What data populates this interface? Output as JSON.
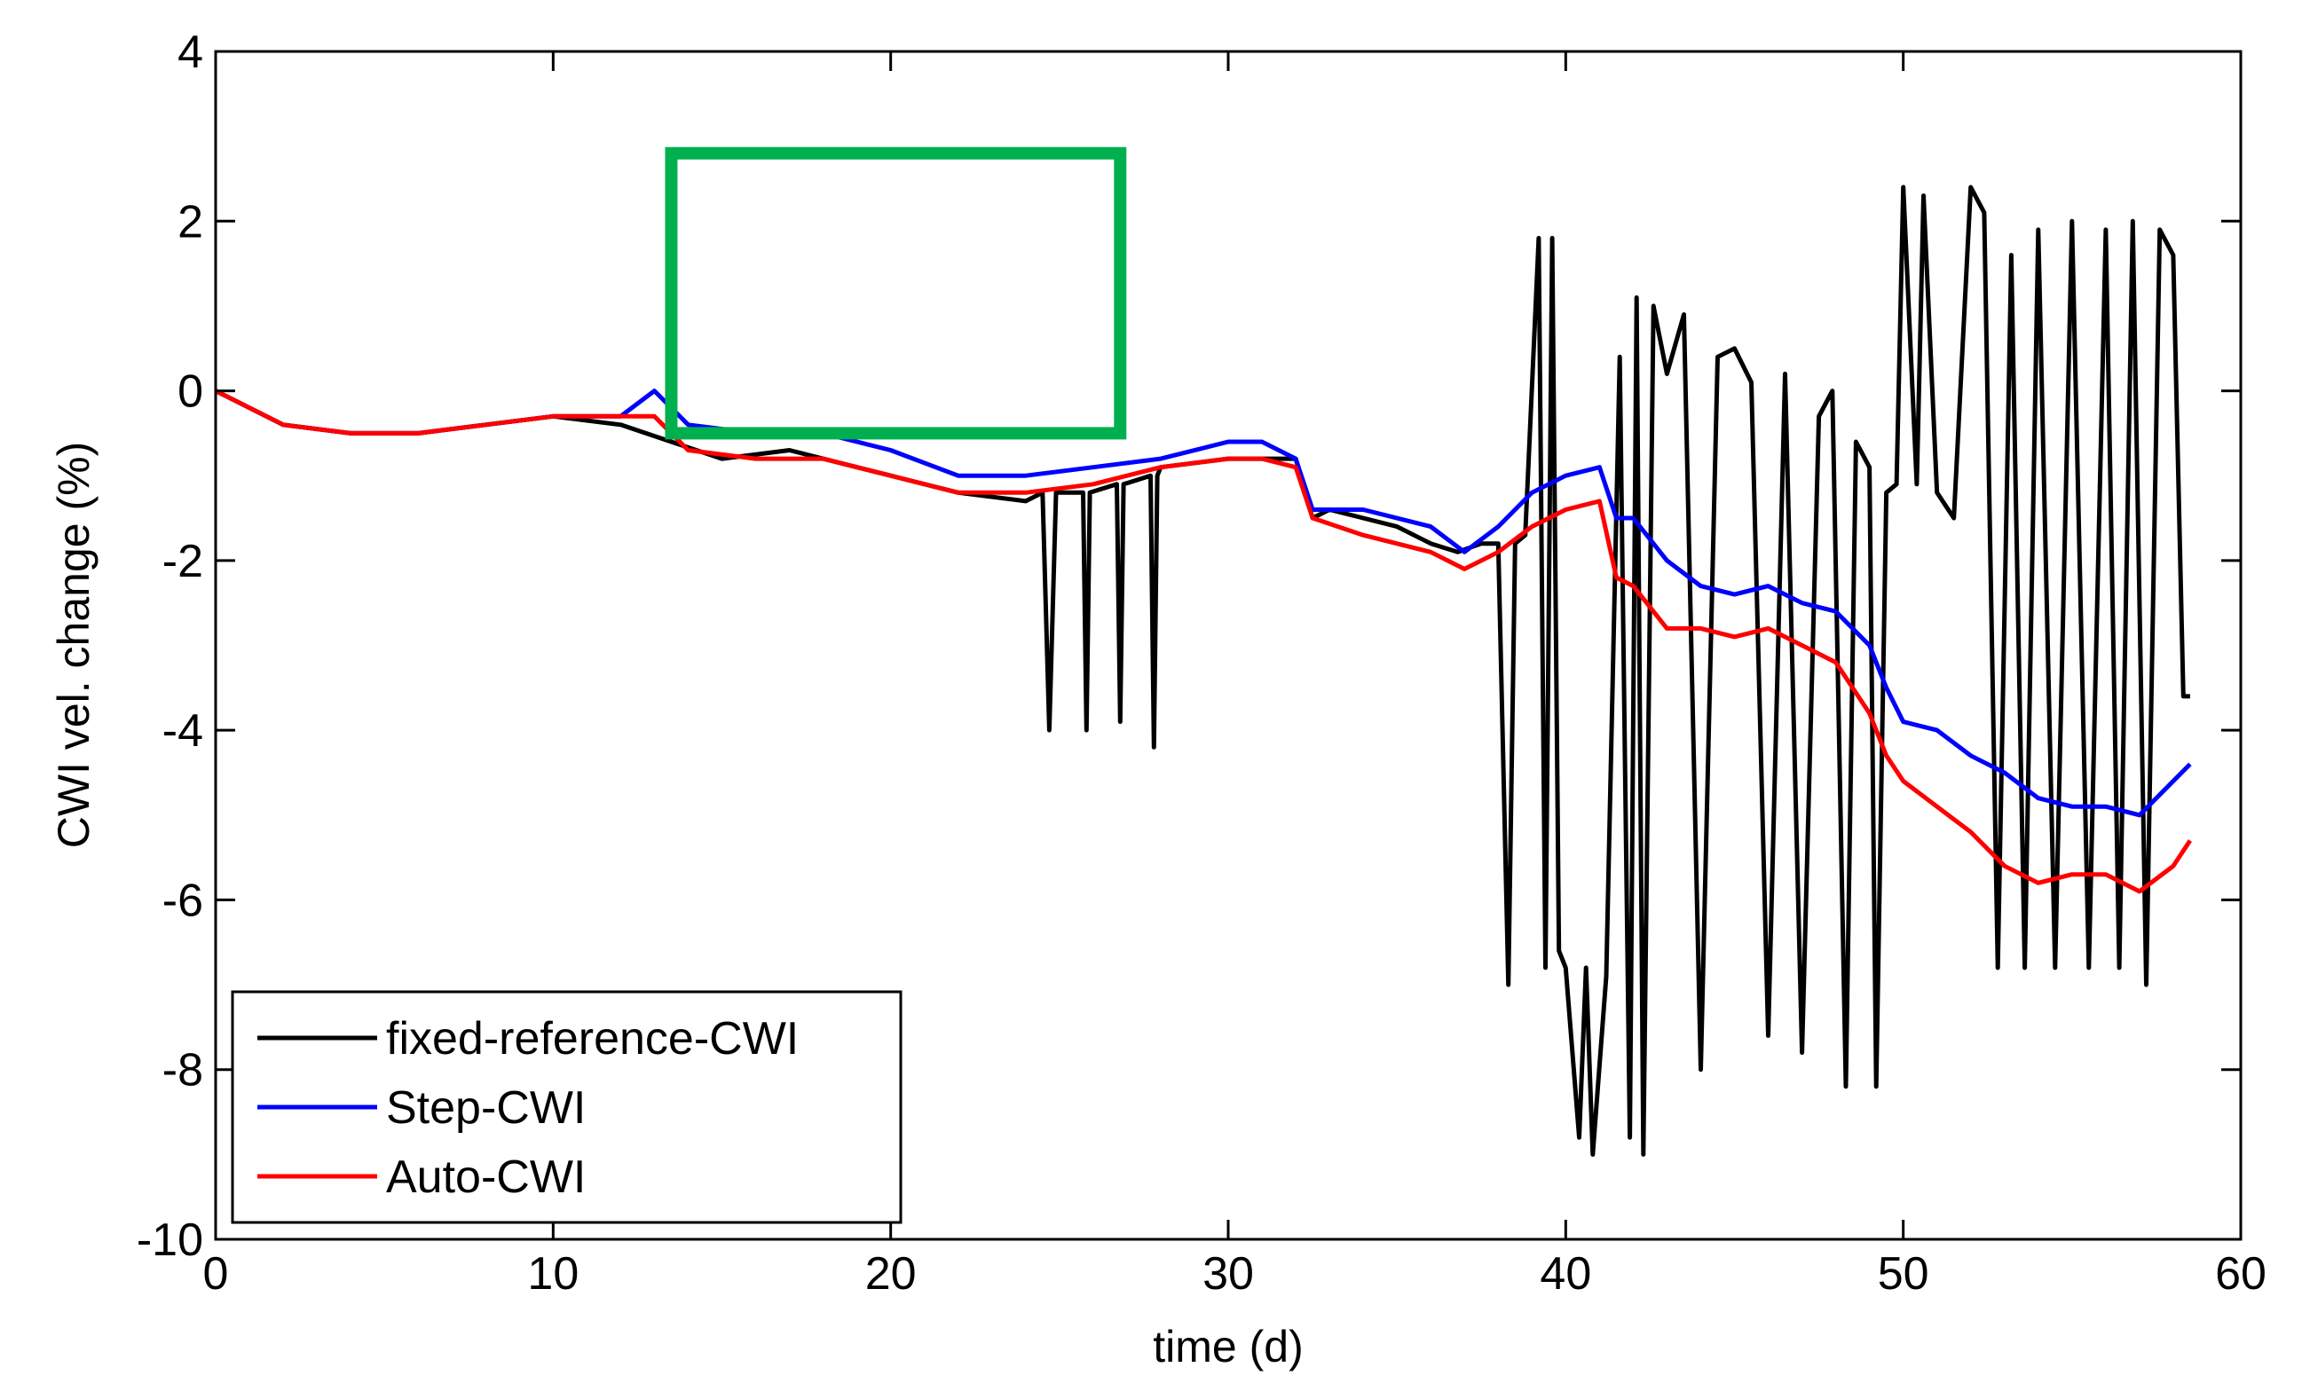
{
  "chart_data": {
    "type": "line",
    "title": "",
    "xlabel": "time (d)",
    "ylabel": "CWI vel. change (%)",
    "xlim": [
      0,
      60
    ],
    "ylim": [
      -10,
      4
    ],
    "xticks": [
      "0",
      "10",
      "20",
      "30",
      "40",
      "50",
      "60"
    ],
    "yticks": [
      "4",
      "2",
      "0",
      "-2",
      "-4",
      "-6",
      "-8",
      "-10"
    ],
    "grid": false,
    "legend_position": "bottom-left",
    "annotation_box": {
      "x_range": [
        13.5,
        26.8
      ],
      "y_range": [
        -0.5,
        2.8
      ],
      "color": "#00b04f"
    },
    "series": [
      {
        "name": "fixed-reference-CWI",
        "color": "#000000",
        "x": [
          0,
          2,
          4,
          6,
          8,
          10,
          12,
          13.5,
          15,
          17,
          19,
          20,
          22,
          24,
          24.5,
          24.7,
          24.9,
          25.7,
          25.8,
          25.9,
          26.7,
          26.8,
          26.9,
          27.7,
          27.8,
          27.9,
          28,
          30,
          32,
          32.5,
          33,
          34,
          35,
          36,
          36.8,
          37.5,
          38,
          38.3,
          38.5,
          38.8,
          39.2,
          39.4,
          39.6,
          39.8,
          40,
          40.4,
          40.6,
          40.8,
          41.2,
          41.6,
          41.9,
          42.1,
          42.3,
          42.6,
          43,
          43.5,
          44,
          44.5,
          45,
          45.5,
          46,
          46.5,
          47,
          47.5,
          47.9,
          48.3,
          48.6,
          49,
          49.2,
          49.5,
          49.8,
          50,
          50.4,
          50.6,
          51,
          51.5,
          52,
          52.4,
          52.8,
          53.2,
          53.6,
          54,
          54.5,
          55,
          55.5,
          56,
          56.4,
          56.8,
          57.2,
          57.6,
          58,
          58.3,
          58.5
        ],
        "y": [
          0,
          -0.4,
          -0.5,
          -0.5,
          -0.4,
          -0.3,
          -0.4,
          -0.6,
          -0.8,
          -0.7,
          -0.9,
          -1.0,
          -1.2,
          -1.3,
          -1.2,
          -4.0,
          -1.2,
          -1.2,
          -4.0,
          -1.2,
          -1.1,
          -3.9,
          -1.1,
          -1.0,
          -4.2,
          -1.0,
          -0.9,
          -0.8,
          -0.8,
          -1.5,
          -1.4,
          -1.5,
          -1.6,
          -1.8,
          -1.9,
          -1.8,
          -1.8,
          -7.0,
          -1.8,
          -1.7,
          1.8,
          -6.8,
          1.8,
          -6.6,
          -6.8,
          -8.8,
          -6.8,
          -9.0,
          -6.9,
          0.4,
          -8.8,
          1.1,
          -9.0,
          1.0,
          0.2,
          0.9,
          -8.0,
          0.4,
          0.5,
          0.1,
          -7.6,
          0.2,
          -7.8,
          -0.3,
          0.0,
          -8.2,
          -0.6,
          -0.9,
          -8.2,
          -1.2,
          -1.1,
          2.4,
          -1.1,
          2.3,
          -1.2,
          -1.5,
          2.4,
          2.1,
          -6.8,
          1.6,
          -6.8,
          1.9,
          -6.8,
          2.0,
          -6.8,
          1.9,
          -6.8,
          2.0,
          -7.0,
          1.9,
          1.6,
          -3.6,
          -3.6
        ]
      },
      {
        "name": "Step-CWI",
        "color": "#0000ff",
        "x": [
          0,
          2,
          4,
          6,
          8,
          10,
          12,
          13,
          14,
          16,
          18,
          20,
          22,
          24,
          26,
          28,
          30,
          31,
          32,
          32.5,
          34,
          36,
          37,
          38,
          39,
          40,
          41,
          41.5,
          42,
          43,
          44,
          45,
          46,
          47,
          48,
          49,
          49.5,
          50,
          51,
          52,
          53,
          54,
          55,
          56,
          57,
          58,
          58.5
        ],
        "y": [
          0,
          -0.4,
          -0.5,
          -0.5,
          -0.4,
          -0.3,
          -0.3,
          0.0,
          -0.4,
          -0.5,
          -0.5,
          -0.7,
          -1.0,
          -1.0,
          -0.9,
          -0.8,
          -0.6,
          -0.6,
          -0.8,
          -1.4,
          -1.4,
          -1.6,
          -1.9,
          -1.6,
          -1.2,
          -1.0,
          -0.9,
          -1.5,
          -1.5,
          -2.0,
          -2.3,
          -2.4,
          -2.3,
          -2.5,
          -2.6,
          -3.0,
          -3.5,
          -3.9,
          -4.0,
          -4.3,
          -4.5,
          -4.8,
          -4.9,
          -4.9,
          -5.0,
          -4.6,
          -4.4
        ]
      },
      {
        "name": "Auto-CWI",
        "color": "#ff0000",
        "x": [
          0,
          2,
          4,
          6,
          8,
          10,
          12,
          13,
          14,
          16,
          18,
          20,
          22,
          24,
          26,
          28,
          30,
          31,
          32,
          32.5,
          34,
          36,
          37,
          38,
          39,
          40,
          41,
          41.5,
          42,
          43,
          44,
          45,
          46,
          47,
          48,
          49,
          49.5,
          50,
          51,
          52,
          53,
          54,
          55,
          56,
          57,
          58,
          58.5
        ],
        "y": [
          0,
          -0.4,
          -0.5,
          -0.5,
          -0.4,
          -0.3,
          -0.3,
          -0.3,
          -0.7,
          -0.8,
          -0.8,
          -1.0,
          -1.2,
          -1.2,
          -1.1,
          -0.9,
          -0.8,
          -0.8,
          -0.9,
          -1.5,
          -1.7,
          -1.9,
          -2.1,
          -1.9,
          -1.6,
          -1.4,
          -1.3,
          -2.2,
          -2.3,
          -2.8,
          -2.8,
          -2.9,
          -2.8,
          -3.0,
          -3.2,
          -3.8,
          -4.3,
          -4.6,
          -4.9,
          -5.2,
          -5.6,
          -5.8,
          -5.7,
          -5.7,
          -5.9,
          -5.6,
          -5.3
        ]
      }
    ]
  }
}
